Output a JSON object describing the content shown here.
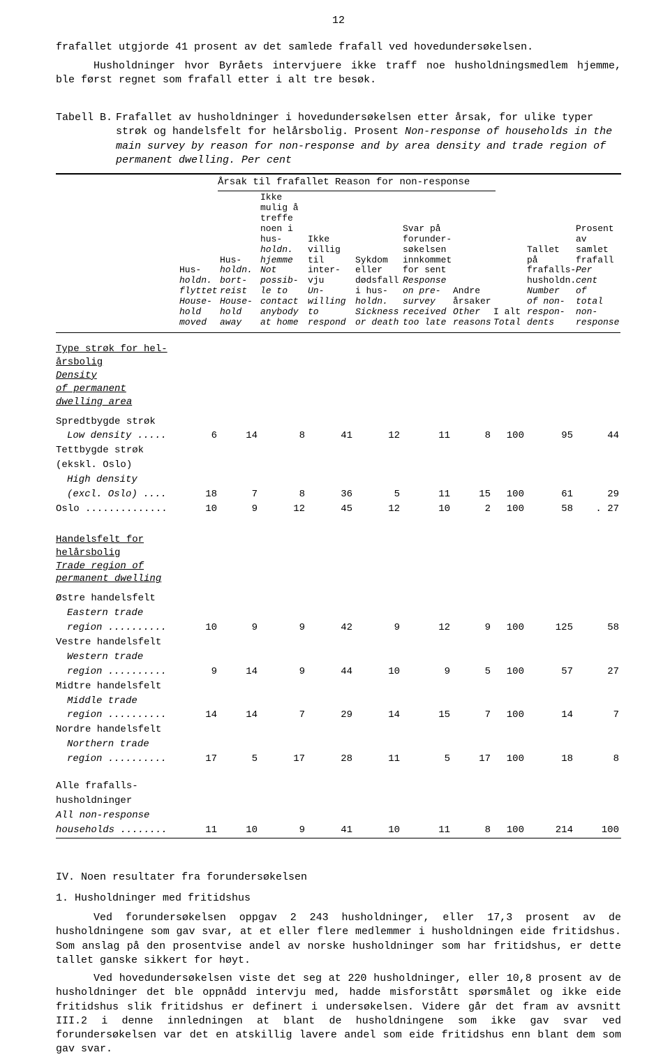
{
  "page_number": "12",
  "intro_lines": [
    "frafallet utgjorde 41 prosent av det samlede frafall ved hovedundersøkelsen.",
    "Husholdninger hvor Byråets intervjuere ikke traff noe husholdningsmedlem hjemme, ble først regnet som frafall etter i alt tre besøk."
  ],
  "caption": {
    "label": "Tabell B.",
    "nor": "Frafallet av husholdninger i hovedundersøkelsen etter årsak, for ulike typer strøk og handelsfelt for helårsbolig.  Prosent",
    "eng": "Non-response of households in the main survey by reason for non-response and by area density and trade region of permanent dwelling. Per cent"
  },
  "table": {
    "reason_header": "Årsak til frafallet  Reason for non-response",
    "cols": [
      "Hus-\nholdn.\nflyttet\nHouse-\nhold\nmoved",
      "Hus-\nholdn.\nbort-\nreist\nHouse-\nhold\naway",
      "Ikke\nmulig å\ntreffe\nnoen i\nhus-\nholdn.\nhjemme\nNot\npossib-\nle to\ncontact\nanybody\nat home",
      "Ikke\nvillig\ntil\ninter-\nvju\nUn-\nwilling\nto\nrespond",
      "Sykdom\neller\ndødsfall\ni hus-\nholdn.\nSickness\nor death",
      "Svar på\nforunder-\nsøkelsen\ninnkommet\nfor sent\nResponse\non pre-\nsurvey\nreceived\ntoo late",
      "Andre\nårsaker\nOther\nreasons",
      "I alt\nTotal",
      "Tallet på\nfrafalls-\nhusholdn.\nNumber\nof non-\nrespon-\ndents",
      "Prosent\nav samlet\nfrafall\nPer cent\nof total\nnon-\nresponse"
    ],
    "sections": [
      {
        "heading_nor": "Type strøk for hel-\nårsbolig",
        "heading_eng": "Density\nof permanent\ndwelling area",
        "rows": [
          {
            "label_nor": "Spredtbygde strøk",
            "label_eng": "Low density .....",
            "v": [
              "6",
              "14",
              "8",
              "41",
              "12",
              "11",
              "8",
              "100",
              "95",
              "44"
            ]
          },
          {
            "label_nor": "Tettbygde strøk\n(ekskl. Oslo)",
            "label_eng": "High density\n(excl. Oslo) ....",
            "v": [
              "18",
              "7",
              "8",
              "36",
              "5",
              "11",
              "15",
              "100",
              "61",
              "29"
            ]
          },
          {
            "label_nor": "Oslo ..............",
            "label_eng": "",
            "v": [
              "10",
              "9",
              "12",
              "45",
              "12",
              "10",
              "2",
              "100",
              "58",
              ". 27"
            ]
          }
        ]
      },
      {
        "heading_nor": "Handelsfelt for\nhelårsbolig",
        "heading_eng": "Trade region of\npermanent dwelling",
        "rows": [
          {
            "label_nor": "Østre handelsfelt",
            "label_eng": "Eastern trade\nregion ..........",
            "v": [
              "10",
              "9",
              "9",
              "42",
              "9",
              "12",
              "9",
              "100",
              "125",
              "58"
            ]
          },
          {
            "label_nor": "Vestre handelsfelt",
            "label_eng": "Western trade\nregion ..........",
            "v": [
              "9",
              "14",
              "9",
              "44",
              "10",
              "9",
              "5",
              "100",
              "57",
              "27"
            ]
          },
          {
            "label_nor": "Midtre handelsfelt",
            "label_eng": "Middle trade\nregion ..........",
            "v": [
              "14",
              "14",
              "7",
              "29",
              "14",
              "15",
              "7",
              "100",
              "14",
              "7"
            ]
          },
          {
            "label_nor": "Nordre handelsfelt",
            "label_eng": "Northern trade\nregion ..........",
            "v": [
              "17",
              "5",
              "17",
              "28",
              "11",
              "5",
              "17",
              "100",
              "18",
              "8"
            ]
          }
        ]
      },
      {
        "heading_nor": "Alle frafalls-\nhusholdninger",
        "heading_eng": "All non-response\nhouseholds ........",
        "rows": [
          {
            "label_nor": "",
            "label_eng": "",
            "v": [
              "11",
              "10",
              "9",
              "41",
              "10",
              "11",
              "8",
              "100",
              "214",
              "100"
            ],
            "inline": true
          }
        ]
      }
    ]
  },
  "section4": {
    "heading": "IV.  Noen resultater fra forundersøkelsen",
    "sub": "1.  Husholdninger med fritidshus",
    "paras": [
      "Ved forundersøkelsen oppgav 2 243 husholdninger, eller 17,3 prosent av de husholdningene som gav svar, at et eller flere medlemmer i husholdningen eide fritidshus.  Som anslag på den prosentvise andel av norske husholdninger som har fritidshus, er dette tallet ganske sikkert for høyt.",
      "Ved hovedundersøkelsen viste det seg at 220 husholdninger, eller 10,8 prosent av de husholdninger det ble oppnådd intervju med, hadde misforstått spørsmålet og ikke eide fritidshus slik fritidshus er definert i undersøkelsen.  Videre går det fram av avsnitt III.2 i denne innledningen at blant de husholdningene som ikke gav svar ved forundersøkelsen var det en atskillig lavere andel som eide fritidshus enn blant dem som gav svar."
    ]
  }
}
